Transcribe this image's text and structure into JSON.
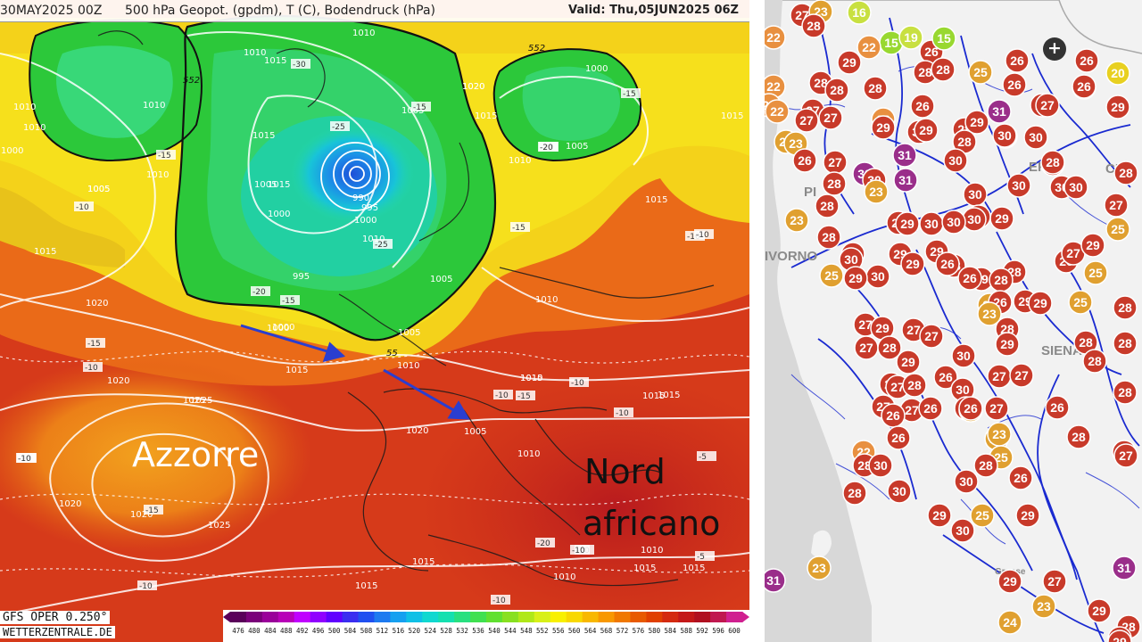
{
  "left_map": {
    "header": {
      "run": "30MAY2025 00Z",
      "description": "500 hPa Geopot. (gpdm), T (C), Bodendruck (hPa)",
      "valid": "Valid: Thu,05JUN2025 06Z"
    },
    "labels": {
      "azzorre": "Azzorre",
      "nord_line1": "Nord",
      "nord_line2": "africano"
    },
    "footer": {
      "model": "GFS OPER 0.250°",
      "source": "WETTERZENTRALE.DE"
    },
    "colorbar": {
      "ticks": [
        "476",
        "480",
        "484",
        "488",
        "492",
        "496",
        "500",
        "504",
        "508",
        "512",
        "516",
        "520",
        "524",
        "528",
        "532",
        "536",
        "540",
        "544",
        "548",
        "552",
        "556",
        "560",
        "564",
        "568",
        "572",
        "576",
        "580",
        "584",
        "588",
        "592",
        "596",
        "600"
      ],
      "colors": [
        "#5a005a",
        "#7a007a",
        "#9a009a",
        "#b800b8",
        "#c000ff",
        "#9000ff",
        "#6000ff",
        "#3a2ef0",
        "#2050f0",
        "#1e7af0",
        "#16a0f0",
        "#10c0e6",
        "#10d8d0",
        "#14e0b0",
        "#28e080",
        "#40e050",
        "#60e030",
        "#88e020",
        "#b0e818",
        "#d8f018",
        "#f8f000",
        "#f8d800",
        "#f8b800",
        "#f89800",
        "#f07800",
        "#e85a00",
        "#e04000",
        "#d42a10",
        "#c41818",
        "#b01020",
        "#c01850",
        "#d02090"
      ]
    },
    "pressure_labels": [
      {
        "t": "1010"
      },
      {
        "t": "1010"
      },
      {
        "t": "1015"
      },
      {
        "t": "1020"
      },
      {
        "t": "1025"
      },
      {
        "t": "1020"
      },
      {
        "t": "1015"
      },
      {
        "t": "1010"
      },
      {
        "t": "1005"
      },
      {
        "t": "990"
      },
      {
        "t": "995"
      },
      {
        "t": "1000"
      },
      {
        "t": "1000"
      },
      {
        "t": "995"
      },
      {
        "t": "1005"
      },
      {
        "t": "1000"
      },
      {
        "t": "1005"
      },
      {
        "t": "1020"
      },
      {
        "t": "1015"
      },
      {
        "t": "1000"
      },
      {
        "t": "1005"
      },
      {
        "t": "1010"
      },
      {
        "t": "1010"
      },
      {
        "t": "1015"
      },
      {
        "t": "1005"
      },
      {
        "t": "1010"
      },
      {
        "t": "1005"
      },
      {
        "t": "1000"
      },
      {
        "t": "1010"
      },
      {
        "t": "1005"
      },
      {
        "t": "1015"
      },
      {
        "t": "1015"
      },
      {
        "t": "1005"
      },
      {
        "t": "1010"
      },
      {
        "t": "1015"
      },
      {
        "t": "1020"
      },
      {
        "t": "1025"
      },
      {
        "t": "1020"
      },
      {
        "t": "1025"
      },
      {
        "t": "1020"
      },
      {
        "t": "1015"
      },
      {
        "t": "1015"
      },
      {
        "t": "1010"
      },
      {
        "t": "1015"
      },
      {
        "t": "1015"
      },
      {
        "t": "1010"
      },
      {
        "t": "1015"
      },
      {
        "t": "1010"
      },
      {
        "t": "1010"
      },
      {
        "t": "1015"
      },
      {
        "t": "1010"
      },
      {
        "t": "1010"
      },
      {
        "t": "1015"
      },
      {
        "t": "1015"
      },
      {
        "t": "1000"
      },
      {
        "t": "1020"
      }
    ],
    "temperature_labels": [
      {
        "t": "-30"
      },
      {
        "t": "-25"
      },
      {
        "t": "-15"
      },
      {
        "t": "-15"
      },
      {
        "t": "-20"
      },
      {
        "t": "-15"
      },
      {
        "t": "-10"
      },
      {
        "t": "-20"
      },
      {
        "t": "-15"
      },
      {
        "t": "-25"
      },
      {
        "t": "-10"
      },
      {
        "t": "-15"
      },
      {
        "t": "-10"
      },
      {
        "t": "-15"
      },
      {
        "t": "-10"
      },
      {
        "t": "-10"
      },
      {
        "t": "-10"
      },
      {
        "t": "-15"
      },
      {
        "t": "-10"
      },
      {
        "t": "-20"
      },
      {
        "t": "-5"
      },
      {
        "t": "-10"
      },
      {
        "t": "-10"
      },
      {
        "t": "-10"
      },
      {
        "t": "-5"
      },
      {
        "t": "-15"
      },
      {
        "t": "-10"
      },
      {
        "t": "-20"
      },
      {
        "t": "-10"
      },
      {
        "t": "-10"
      }
    ],
    "geopotential_labels": [
      {
        "t": "552"
      },
      {
        "t": "552"
      },
      {
        "t": "55"
      }
    ],
    "arrow_color": "#2a3ed0"
  },
  "right_map": {
    "place_labels": [
      {
        "t": "PI"
      },
      {
        "t": "IVORNO"
      },
      {
        "t": "SIENA"
      },
      {
        "t": "FI"
      },
      {
        "t": "E"
      },
      {
        "t": "CE"
      },
      {
        "t": "Grosse"
      }
    ],
    "zoom_label": "+",
    "color_scale": {
      "t15": "#98d830",
      "t16": "#c8e040",
      "t19": "#c8e040",
      "t20": "#e8d020",
      "t22": "#e89040",
      "t23": "#e0a030",
      "t24": "#e0a030",
      "t25": "#e0a030",
      "t26": "#c83a2a",
      "t27": "#c83a2a",
      "t28": "#c83a2a",
      "t29": "#c83a2a",
      "t30": "#c83a2a",
      "t31": "#9a2e8a",
      "t32": "#9a2e8a"
    },
    "stations": [
      {
        "t": "27"
      },
      {
        "t": "23"
      },
      {
        "t": "16"
      },
      {
        "t": "22"
      },
      {
        "t": "28"
      },
      {
        "t": "22"
      },
      {
        "t": "15"
      },
      {
        "t": "19"
      },
      {
        "t": "26"
      },
      {
        "t": "15"
      },
      {
        "t": "22"
      },
      {
        "t": "29"
      },
      {
        "t": "26"
      },
      {
        "t": "28"
      },
      {
        "t": "28"
      },
      {
        "t": "25"
      },
      {
        "t": "26"
      },
      {
        "t": "26"
      },
      {
        "t": "23"
      },
      {
        "t": "20"
      },
      {
        "t": "22"
      },
      {
        "t": "28"
      },
      {
        "t": "27"
      },
      {
        "t": "28"
      },
      {
        "t": "22"
      },
      {
        "t": "27"
      },
      {
        "t": "28"
      },
      {
        "t": "26"
      },
      {
        "t": "27"
      },
      {
        "t": "22"
      },
      {
        "t": "27"
      },
      {
        "t": "23"
      },
      {
        "t": "28"
      },
      {
        "t": "26"
      },
      {
        "t": "31"
      },
      {
        "t": "27"
      },
      {
        "t": "29"
      },
      {
        "t": "23"
      },
      {
        "t": "29"
      },
      {
        "t": "29"
      },
      {
        "t": "30"
      },
      {
        "t": "29"
      },
      {
        "t": "30"
      },
      {
        "t": "28"
      },
      {
        "t": "30"
      },
      {
        "t": "30"
      },
      {
        "t": "26"
      },
      {
        "t": "27"
      },
      {
        "t": "31"
      },
      {
        "t": "30"
      },
      {
        "t": "32"
      },
      {
        "t": "30"
      },
      {
        "t": "29"
      },
      {
        "t": "28"
      },
      {
        "t": "28"
      },
      {
        "t": "28"
      },
      {
        "t": "23"
      },
      {
        "t": "31"
      },
      {
        "t": "30"
      },
      {
        "t": "30"
      },
      {
        "t": "30"
      },
      {
        "t": "23"
      },
      {
        "t": "28"
      },
      {
        "t": "29"
      },
      {
        "t": "29"
      },
      {
        "t": "30"
      },
      {
        "t": "29"
      },
      {
        "t": "30"
      },
      {
        "t": "30"
      },
      {
        "t": "30"
      },
      {
        "t": "30"
      },
      {
        "t": "27"
      },
      {
        "t": "28"
      },
      {
        "t": "28"
      },
      {
        "t": "30"
      },
      {
        "t": "29"
      },
      {
        "t": "30"
      },
      {
        "t": "29"
      },
      {
        "t": "29"
      },
      {
        "t": "26"
      },
      {
        "t": "27"
      },
      {
        "t": "29"
      },
      {
        "t": "25"
      },
      {
        "t": "25"
      },
      {
        "t": "30"
      },
      {
        "t": "29"
      },
      {
        "t": "29"
      },
      {
        "t": "28"
      },
      {
        "t": "26"
      },
      {
        "t": "28"
      },
      {
        "t": "25"
      },
      {
        "t": "26"
      },
      {
        "t": "29"
      },
      {
        "t": "25"
      },
      {
        "t": "26"
      },
      {
        "t": "29"
      },
      {
        "t": "28"
      },
      {
        "t": "23"
      },
      {
        "t": "25"
      },
      {
        "t": "27"
      },
      {
        "t": "29"
      },
      {
        "t": "27"
      },
      {
        "t": "27"
      },
      {
        "t": "28"
      },
      {
        "t": "28"
      },
      {
        "t": "29"
      },
      {
        "t": "27"
      },
      {
        "t": "28"
      },
      {
        "t": "28"
      },
      {
        "t": "30"
      },
      {
        "t": "29"
      },
      {
        "t": "27"
      },
      {
        "t": "28"
      },
      {
        "t": "26"
      },
      {
        "t": "28"
      },
      {
        "t": "27"
      },
      {
        "t": "30"
      },
      {
        "t": "27"
      },
      {
        "t": "28"
      },
      {
        "t": "26"
      },
      {
        "t": "27"
      },
      {
        "t": "27"
      },
      {
        "t": "26"
      },
      {
        "t": "23"
      },
      {
        "t": "27"
      },
      {
        "t": "26"
      },
      {
        "t": "26"
      },
      {
        "t": "28"
      },
      {
        "t": "22"
      },
      {
        "t": "26"
      },
      {
        "t": "25"
      },
      {
        "t": "23"
      },
      {
        "t": "25"
      },
      {
        "t": "26"
      },
      {
        "t": "28"
      },
      {
        "t": "27"
      },
      {
        "t": "28"
      },
      {
        "t": "30"
      },
      {
        "t": "26"
      },
      {
        "t": "28"
      },
      {
        "t": "27"
      },
      {
        "t": "28"
      },
      {
        "t": "30"
      },
      {
        "t": "30"
      },
      {
        "t": "29"
      },
      {
        "t": "29"
      },
      {
        "t": "30"
      },
      {
        "t": "25"
      },
      {
        "t": "23"
      },
      {
        "t": "31"
      },
      {
        "t": "29"
      },
      {
        "t": "27"
      },
      {
        "t": "31"
      },
      {
        "t": "23"
      },
      {
        "t": "24"
      },
      {
        "t": "29"
      },
      {
        "t": "28"
      },
      {
        "t": "27"
      },
      {
        "t": "29"
      }
    ]
  }
}
